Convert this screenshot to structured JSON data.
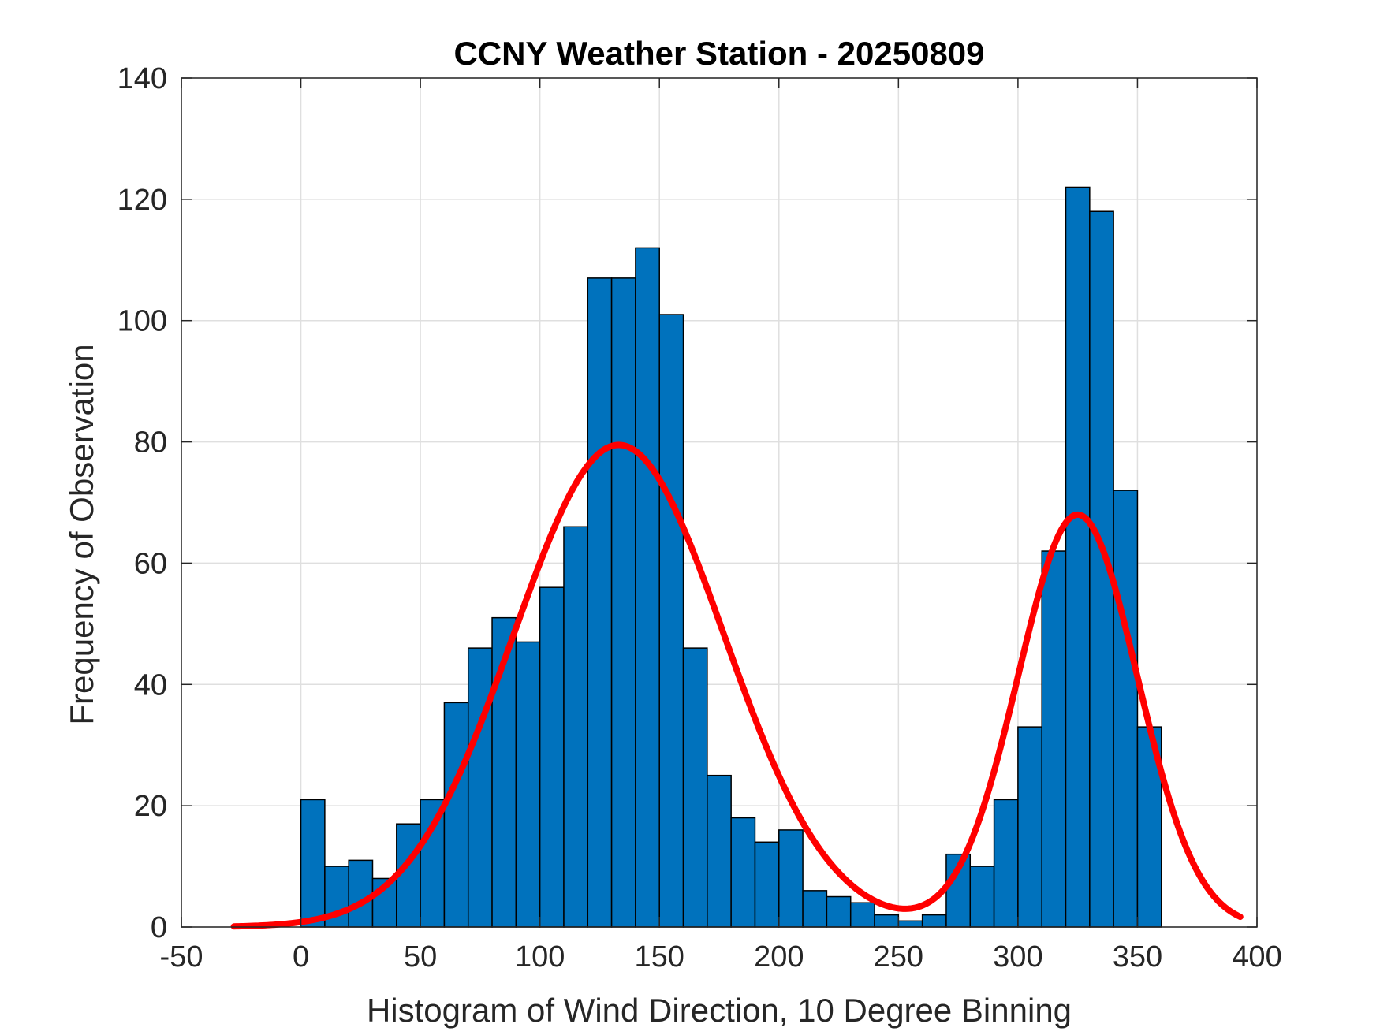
{
  "chart_data": {
    "type": "bar",
    "title": "CCNY Weather Station - 20250809",
    "xlabel": "Histogram of Wind Direction, 10 Degree Binning",
    "ylabel": "Frequency of Observation",
    "xlim": [
      -50,
      400
    ],
    "ylim": [
      0,
      140
    ],
    "xticks": [
      "-50",
      "0",
      "50",
      "100",
      "150",
      "200",
      "250",
      "300",
      "350",
      "400"
    ],
    "yticks": [
      "0",
      "20",
      "40",
      "60",
      "80",
      "100",
      "120",
      "140"
    ],
    "grid": true,
    "bin_width": 10,
    "bin_edges_start": 0,
    "bins": [
      {
        "start": 0,
        "count": 21
      },
      {
        "start": 10,
        "count": 10
      },
      {
        "start": 20,
        "count": 11
      },
      {
        "start": 30,
        "count": 8
      },
      {
        "start": 40,
        "count": 17
      },
      {
        "start": 50,
        "count": 21
      },
      {
        "start": 60,
        "count": 37
      },
      {
        "start": 70,
        "count": 46
      },
      {
        "start": 80,
        "count": 51
      },
      {
        "start": 90,
        "count": 47
      },
      {
        "start": 100,
        "count": 56
      },
      {
        "start": 110,
        "count": 66
      },
      {
        "start": 120,
        "count": 107
      },
      {
        "start": 130,
        "count": 107
      },
      {
        "start": 140,
        "count": 112
      },
      {
        "start": 150,
        "count": 101
      },
      {
        "start": 160,
        "count": 46
      },
      {
        "start": 170,
        "count": 25
      },
      {
        "start": 180,
        "count": 18
      },
      {
        "start": 190,
        "count": 14
      },
      {
        "start": 200,
        "count": 16
      },
      {
        "start": 210,
        "count": 6
      },
      {
        "start": 220,
        "count": 5
      },
      {
        "start": 230,
        "count": 4
      },
      {
        "start": 240,
        "count": 2
      },
      {
        "start": 250,
        "count": 1
      },
      {
        "start": 260,
        "count": 2
      },
      {
        "start": 270,
        "count": 12
      },
      {
        "start": 280,
        "count": 10
      },
      {
        "start": 290,
        "count": 21
      },
      {
        "start": 300,
        "count": 33
      },
      {
        "start": 310,
        "count": 62
      },
      {
        "start": 320,
        "count": 122
      },
      {
        "start": 330,
        "count": 118
      },
      {
        "start": 340,
        "count": 72
      },
      {
        "start": 350,
        "count": 33
      }
    ],
    "fit_curve": {
      "type": "gaussian_mixture",
      "x_range": [
        -28,
        393
      ],
      "components": [
        {
          "amplitude": 79.5,
          "mean": 133,
          "sigma": 44
        },
        {
          "amplitude": 68,
          "mean": 325,
          "sigma": 25
        }
      ]
    },
    "colors": {
      "bar_fill": "#0072BD",
      "bar_edge": "#000000",
      "fit_line": "#FF0000",
      "grid": "#DFDFDF",
      "axis": "#262626"
    }
  }
}
